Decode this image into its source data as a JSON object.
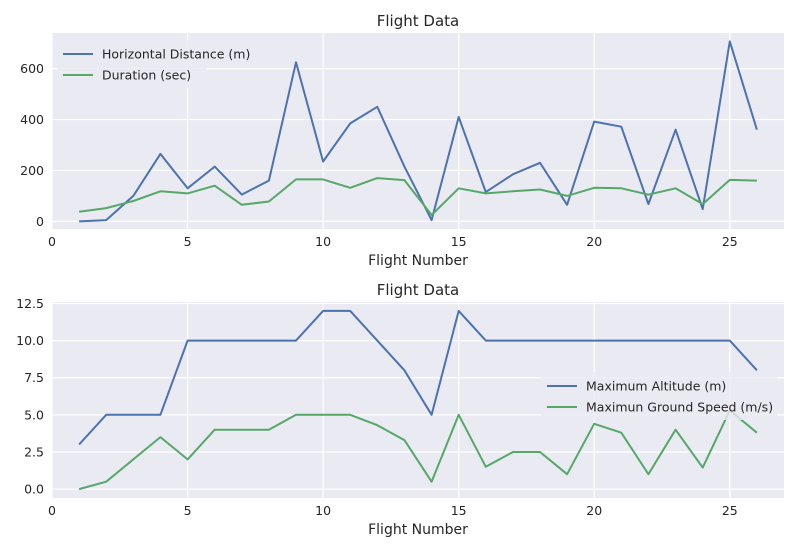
{
  "chart_data": [
    {
      "type": "line",
      "title": "Flight Data",
      "xlabel": "Flight Number",
      "ylabel": "",
      "xlim": [
        0,
        27
      ],
      "ylim": [
        -30,
        740
      ],
      "xticks": [
        0,
        5,
        10,
        15,
        20,
        25
      ],
      "yticks": [
        0,
        200,
        400,
        600
      ],
      "grid": true,
      "legend_position": "upper left",
      "x": [
        1,
        2,
        3,
        4,
        5,
        6,
        7,
        8,
        9,
        10,
        11,
        12,
        13,
        14,
        15,
        16,
        17,
        18,
        19,
        20,
        21,
        22,
        23,
        24,
        25,
        26
      ],
      "series": [
        {
          "name": "Horizontal Distance (m)",
          "color": "#4c72b0",
          "values": [
            0,
            5,
            100,
            265,
            130,
            215,
            105,
            160,
            625,
            235,
            385,
            450,
            215,
            5,
            410,
            115,
            185,
            230,
            65,
            392,
            372,
            68,
            360,
            48,
            707,
            360
          ]
        },
        {
          "name": "Duration (sec)",
          "color": "#55a868",
          "values": [
            38,
            52,
            80,
            118,
            110,
            140,
            65,
            78,
            165,
            165,
            132,
            170,
            162,
            25,
            130,
            110,
            118,
            125,
            100,
            132,
            130,
            105,
            130,
            68,
            163,
            160
          ]
        }
      ]
    },
    {
      "type": "line",
      "title": "Flight Data",
      "xlabel": "Flight Number",
      "ylabel": "",
      "xlim": [
        0,
        27
      ],
      "ylim": [
        -0.6,
        12.6
      ],
      "xticks": [
        0,
        5,
        10,
        15,
        20,
        25
      ],
      "yticks": [
        0.0,
        2.5,
        5.0,
        7.5,
        10.0,
        12.5
      ],
      "ytick_labels": [
        "0.0",
        "2.5",
        "5.0",
        "7.5",
        "10.0",
        "12.5"
      ],
      "grid": true,
      "legend_position": "center right",
      "x": [
        1,
        2,
        3,
        4,
        5,
        6,
        7,
        8,
        9,
        10,
        11,
        12,
        13,
        14,
        15,
        16,
        17,
        18,
        19,
        20,
        21,
        22,
        23,
        24,
        25,
        26
      ],
      "series": [
        {
          "name": "Maximum Altitude (m)",
          "color": "#4c72b0",
          "values": [
            3,
            5,
            5,
            5,
            10,
            10,
            10,
            10,
            10,
            12,
            12,
            10,
            8,
            5,
            12,
            10,
            10,
            10,
            10,
            10,
            10,
            10,
            10,
            10,
            10,
            8
          ]
        },
        {
          "name": "Maximun Ground Speed (m/s)",
          "color": "#55a868",
          "values": [
            0,
            0.5,
            2,
            3.5,
            2,
            4,
            4,
            4,
            5,
            5,
            5,
            4.3,
            3.3,
            0.5,
            5,
            1.5,
            2.5,
            2.5,
            1,
            4.4,
            3.8,
            1,
            4,
            1.45,
            5.3,
            3.8
          ]
        }
      ]
    }
  ]
}
